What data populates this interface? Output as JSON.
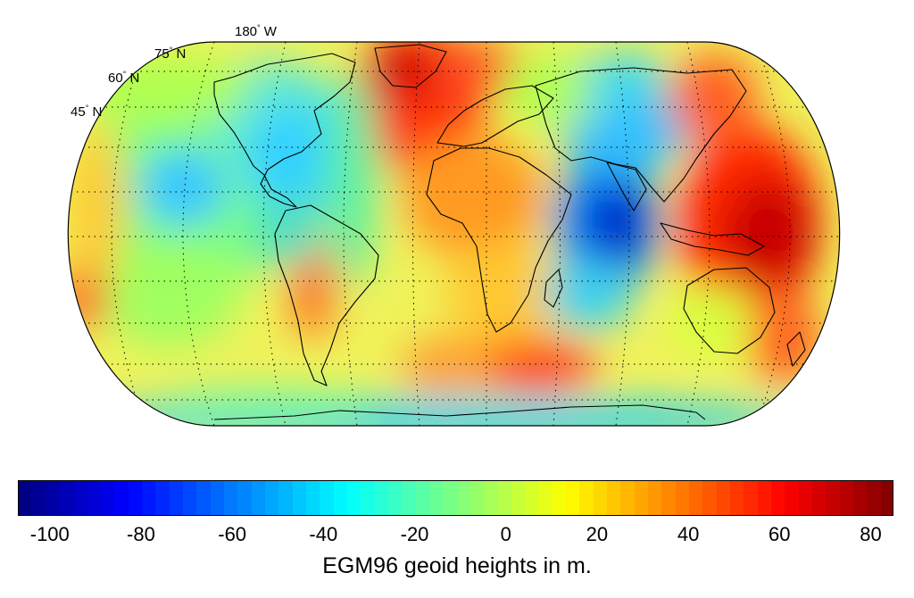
{
  "map": {
    "projection_labels": [
      {
        "id": "lon-180",
        "value": "180",
        "suffix": " W"
      },
      {
        "id": "lat-75",
        "value": "75",
        "suffix": " N"
      },
      {
        "id": "lat-60",
        "value": "60",
        "suffix": " N"
      },
      {
        "id": "lat-45",
        "value": "45",
        "suffix": " N"
      }
    ]
  },
  "colorbar": {
    "min": -107,
    "max": 85,
    "tick_labels": [
      "-100",
      "-80",
      "-60",
      "-40",
      "-20",
      "0",
      "20",
      "40",
      "60",
      "80"
    ],
    "tick_values": [
      -100,
      -80,
      -60,
      -40,
      -20,
      0,
      20,
      40,
      60,
      80
    ],
    "colormap": "jet",
    "label": "EGM96 geoid heights in m."
  },
  "colors": {
    "low": "#00008f",
    "mid": "#80ff80",
    "high": "#800000"
  }
}
